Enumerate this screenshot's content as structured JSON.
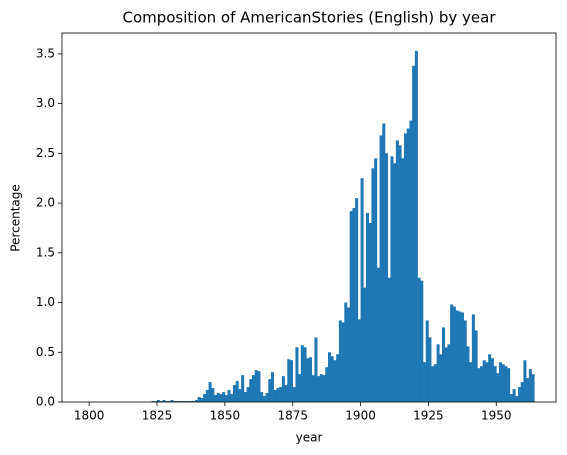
{
  "chart_data": {
    "type": "histogram",
    "title": "Composition of AmericanStories (English) by year",
    "xlabel": "year",
    "ylabel": "Percentage",
    "color": "#1f77b4",
    "grid": false,
    "bins": [
      1820,
      1821,
      1822,
      1823,
      1824,
      1825,
      1826,
      1827,
      1828,
      1829,
      1830,
      1831,
      1832,
      1833,
      1834,
      1835,
      1836,
      1837,
      1838,
      1839,
      1840,
      1841,
      1842,
      1843,
      1844,
      1845,
      1846,
      1847,
      1848,
      1849,
      1850,
      1851,
      1852,
      1853,
      1854,
      1855,
      1856,
      1857,
      1858,
      1859,
      1860,
      1861,
      1862,
      1863,
      1864,
      1865,
      1866,
      1867,
      1868,
      1869,
      1870,
      1871,
      1872,
      1873,
      1874,
      1875,
      1876,
      1877,
      1878,
      1879,
      1880,
      1881,
      1882,
      1883,
      1884,
      1885,
      1886,
      1887,
      1888,
      1889,
      1890,
      1891,
      1892,
      1893,
      1894,
      1895,
      1896,
      1897,
      1898,
      1899,
      1900,
      1901,
      1902,
      1903,
      1904,
      1905,
      1906,
      1907,
      1908,
      1909,
      1910,
      1911,
      1912,
      1913,
      1914,
      1915,
      1916,
      1917,
      1918,
      1919,
      1920,
      1921,
      1922,
      1923,
      1924,
      1925,
      1926,
      1927,
      1928,
      1929,
      1930,
      1931,
      1932,
      1933,
      1934,
      1935,
      1936,
      1937,
      1938,
      1939,
      1940,
      1941,
      1942,
      1943,
      1944,
      1945,
      1946,
      1947,
      1948,
      1949,
      1950,
      1951,
      1952,
      1953,
      1954,
      1955,
      1956,
      1957,
      1958,
      1959,
      1960,
      1961,
      1962,
      1963,
      1964
    ],
    "values": [
      0,
      0,
      0,
      0.01,
      0.01,
      0.02,
      0.01,
      0.02,
      0.01,
      0.01,
      0.02,
      0.01,
      0.01,
      0.01,
      0.01,
      0.01,
      0.01,
      0.01,
      0.01,
      0.02,
      0.05,
      0.04,
      0.08,
      0.12,
      0.2,
      0.14,
      0.07,
      0.09,
      0.08,
      0.1,
      0.07,
      0.12,
      0.08,
      0.17,
      0.21,
      0.13,
      0.27,
      0.1,
      0.15,
      0.23,
      0.27,
      0.32,
      0.31,
      0.1,
      0.06,
      0.09,
      0.23,
      0.3,
      0.12,
      0.14,
      0.15,
      0.26,
      0.17,
      0.43,
      0.42,
      0.15,
      0.55,
      0.28,
      0.57,
      0.55,
      0.44,
      0.45,
      0.27,
      0.65,
      0.26,
      0.28,
      0.27,
      0.35,
      0.5,
      0.46,
      0.42,
      0.48,
      0.82,
      0.8,
      1.0,
      0.95,
      1.92,
      1.95,
      2.05,
      0.83,
      2.25,
      1.15,
      1.9,
      1.8,
      2.35,
      2.45,
      1.35,
      2.68,
      2.8,
      2.5,
      1.25,
      2.47,
      2.4,
      2.63,
      2.58,
      2.45,
      2.7,
      2.75,
      2.83,
      3.38,
      3.53,
      1.25,
      1.22,
      0.4,
      0.82,
      0.65,
      0.36,
      0.38,
      0.58,
      0.48,
      0.75,
      0.55,
      0.58,
      0.98,
      0.96,
      0.92,
      0.91,
      0.9,
      0.82,
      0.56,
      0.4,
      0.88,
      0.72,
      0.34,
      0.36,
      0.42,
      0.4,
      0.48,
      0.44,
      0.36,
      0.29,
      0.4,
      0.38,
      0.36,
      0.34,
      0.08,
      0.13,
      0.06,
      0.15,
      0.2,
      0.42,
      0.24,
      0.33,
      0.28
    ],
    "xlim": [
      1790,
      1972
    ],
    "xticks": [
      1800,
      1825,
      1850,
      1875,
      1900,
      1925,
      1950
    ],
    "ylim": [
      0,
      3.71
    ],
    "yticks": [
      {
        "value": 0,
        "label": "0.0"
      },
      0.5,
      {
        "value": 1,
        "label": "1.0"
      },
      1.5,
      {
        "value": 2,
        "label": "2.0"
      },
      2.5,
      {
        "value": 3,
        "label": "3.0"
      },
      3.5
    ]
  }
}
